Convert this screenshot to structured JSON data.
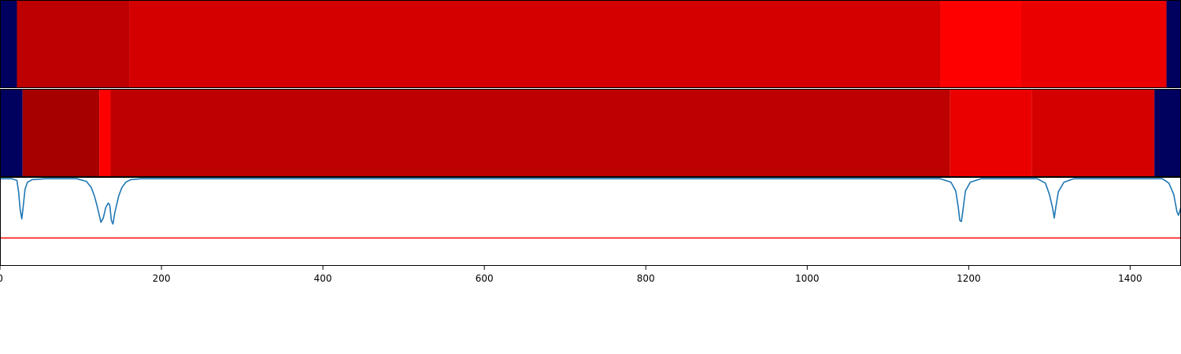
{
  "chart_data": [
    {
      "type": "heatmap",
      "xlim": [
        0,
        1463
      ],
      "colormap": "seismic",
      "segments": [
        {
          "x0": 0,
          "x1": 21,
          "value": -0.95
        },
        {
          "x0": 21,
          "x1": 160,
          "value": 0.76
        },
        {
          "x0": 160,
          "x1": 1165,
          "value": 0.67
        },
        {
          "x0": 1165,
          "x1": 1265,
          "value": 0.5
        },
        {
          "x0": 1265,
          "x1": 1445,
          "value": 0.58
        },
        {
          "x0": 1445,
          "x1": 1463,
          "value": -0.95
        }
      ]
    },
    {
      "type": "heatmap",
      "xlim": [
        0,
        1463
      ],
      "colormap": "seismic",
      "segments": [
        {
          "x0": 0,
          "x1": 28,
          "value": -0.95
        },
        {
          "x0": 28,
          "x1": 123,
          "value": 0.85
        },
        {
          "x0": 123,
          "x1": 137,
          "value": 0.5
        },
        {
          "x0": 137,
          "x1": 1177,
          "value": 0.76
        },
        {
          "x0": 1177,
          "x1": 1278,
          "value": 0.58
        },
        {
          "x0": 1278,
          "x1": 1430,
          "value": 0.67
        },
        {
          "x0": 1430,
          "x1": 1463,
          "value": -0.95
        }
      ]
    },
    {
      "type": "line",
      "xlim": [
        0,
        1463
      ],
      "ylim": [
        -1.0,
        0.02
      ],
      "grid": false,
      "xticks": [
        0,
        200,
        400,
        600,
        800,
        1000,
        1200,
        1400
      ],
      "series": [
        {
          "color": "#1f77b4",
          "points": [
            [
              0,
              0
            ],
            [
              15,
              0
            ],
            [
              21,
              -0.02
            ],
            [
              23,
              -0.15
            ],
            [
              25,
              -0.35
            ],
            [
              27,
              -0.46
            ],
            [
              29,
              -0.3
            ],
            [
              31,
              -0.12
            ],
            [
              34,
              -0.04
            ],
            [
              40,
              -0.01
            ],
            [
              56,
              0
            ],
            [
              95,
              0
            ],
            [
              107,
              -0.03
            ],
            [
              113,
              -0.1
            ],
            [
              117,
              -0.2
            ],
            [
              120,
              -0.3
            ],
            [
              122,
              -0.38
            ],
            [
              125,
              -0.5
            ],
            [
              128,
              -0.45
            ],
            [
              131,
              -0.33
            ],
            [
              134,
              -0.28
            ],
            [
              136,
              -0.3
            ],
            [
              138,
              -0.48
            ],
            [
              140,
              -0.52
            ],
            [
              142,
              -0.4
            ],
            [
              144,
              -0.32
            ],
            [
              147,
              -0.2
            ],
            [
              151,
              -0.1
            ],
            [
              156,
              -0.04
            ],
            [
              162,
              -0.01
            ],
            [
              175,
              0
            ],
            [
              1165,
              0
            ],
            [
              1178,
              -0.04
            ],
            [
              1184,
              -0.14
            ],
            [
              1187,
              -0.32
            ],
            [
              1189,
              -0.48
            ],
            [
              1191,
              -0.49
            ],
            [
              1193,
              -0.35
            ],
            [
              1196,
              -0.14
            ],
            [
              1202,
              -0.04
            ],
            [
              1215,
              0
            ],
            [
              1285,
              0
            ],
            [
              1295,
              -0.05
            ],
            [
              1300,
              -0.18
            ],
            [
              1304,
              -0.34
            ],
            [
              1306,
              -0.45
            ],
            [
              1308,
              -0.32
            ],
            [
              1311,
              -0.15
            ],
            [
              1318,
              -0.04
            ],
            [
              1330,
              0
            ],
            [
              1440,
              0
            ],
            [
              1448,
              -0.05
            ],
            [
              1454,
              -0.18
            ],
            [
              1458,
              -0.38
            ],
            [
              1460,
              -0.42
            ],
            [
              1463,
              -0.32
            ]
          ]
        },
        {
          "color": "#ff0000",
          "points": [
            [
              0,
              -0.68
            ],
            [
              1463,
              -0.68
            ]
          ]
        }
      ]
    }
  ]
}
